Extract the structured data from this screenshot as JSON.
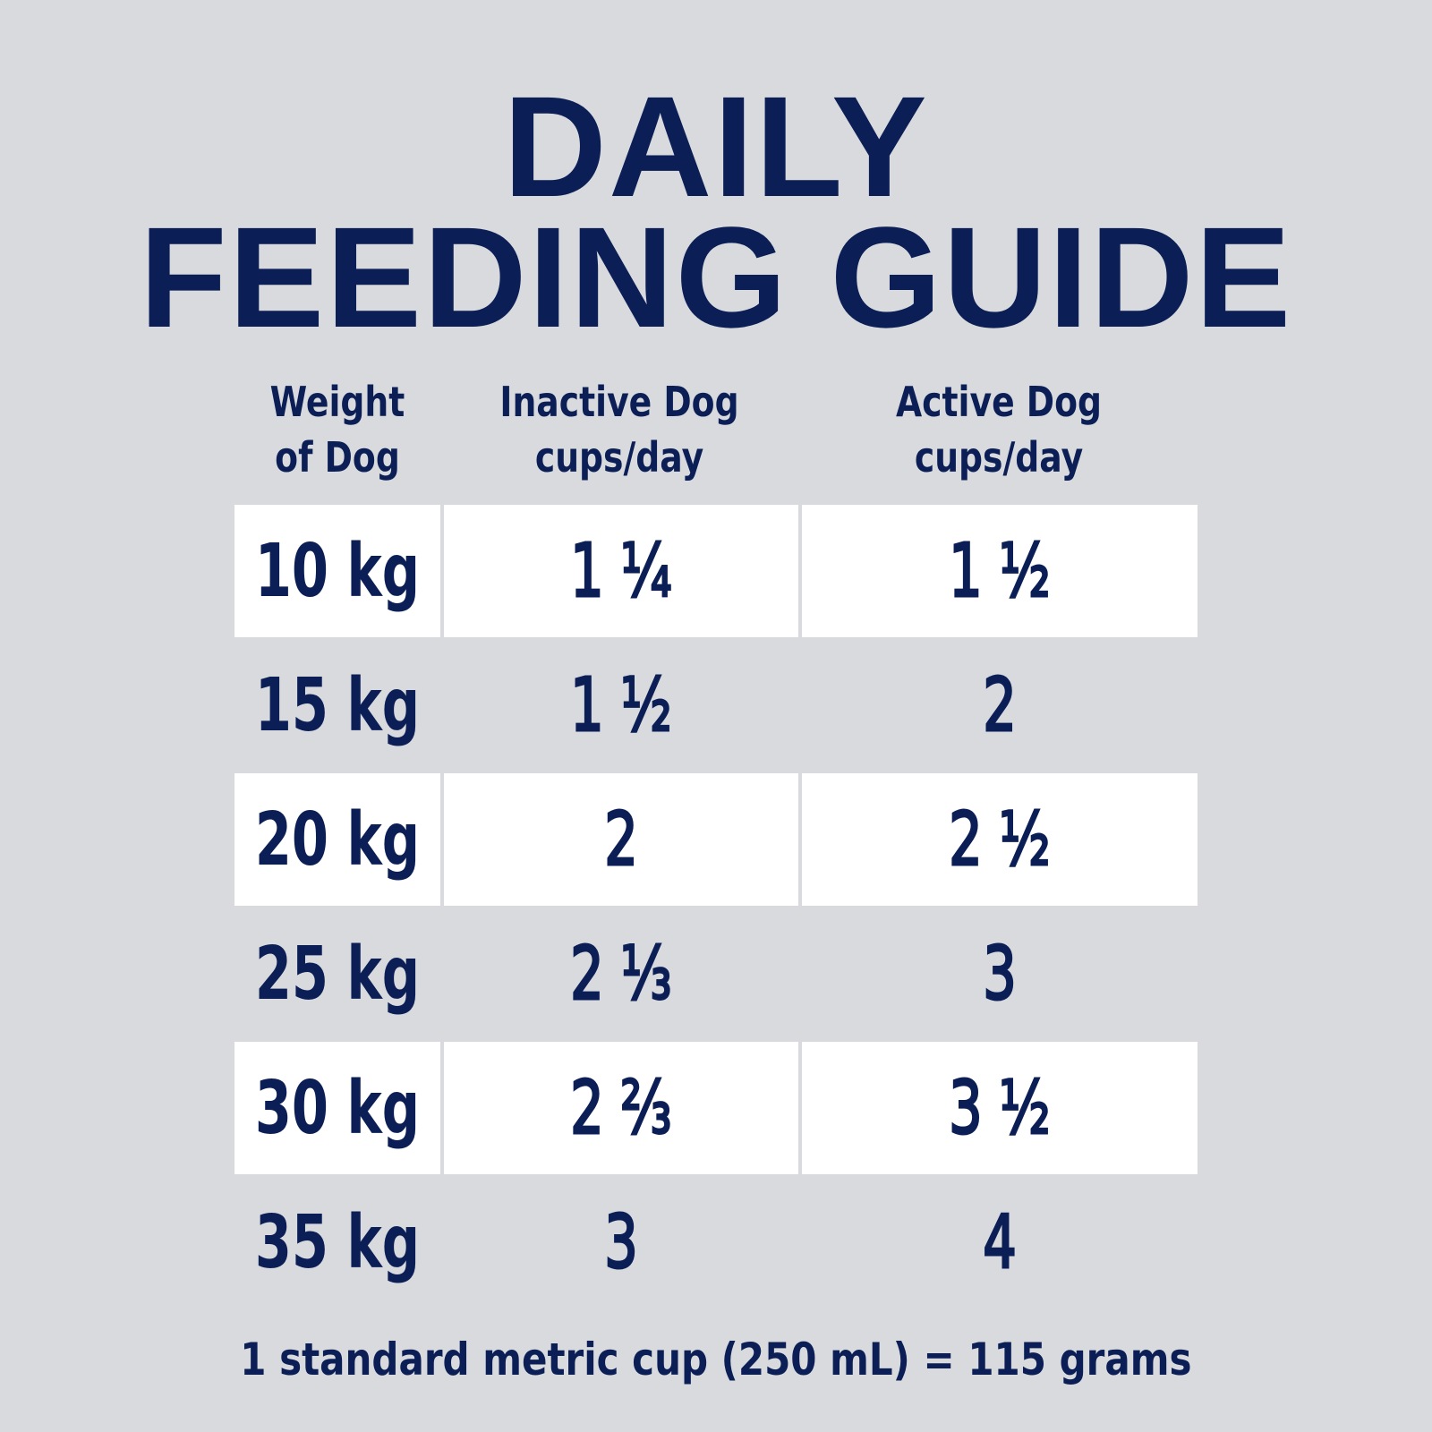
{
  "title": {
    "line1": "DAILY",
    "line2": "FEEDING GUIDE"
  },
  "headers": {
    "weight": [
      "Weight",
      "of Dog"
    ],
    "inactive": [
      "Inactive Dog",
      "cups/day"
    ],
    "active": [
      "Active Dog",
      "cups/day"
    ]
  },
  "rows": [
    {
      "weight": "10 kg",
      "inactive": "1 ¼",
      "active": "1 ½"
    },
    {
      "weight": "15 kg",
      "inactive": "1 ½",
      "active": "2"
    },
    {
      "weight": "20 kg",
      "inactive": "2",
      "active": "2 ½"
    },
    {
      "weight": "25 kg",
      "inactive": "2 ⅓",
      "active": "3"
    },
    {
      "weight": "30 kg",
      "inactive": "2 ⅔",
      "active": "3 ½"
    },
    {
      "weight": "35 kg",
      "inactive": "3",
      "active": "4"
    }
  ],
  "footnote": "1 standard metric cup (250 mL) = 115 grams",
  "colors": {
    "background": "#d8dade",
    "row_highlight": "#ffffff",
    "text": "#0b1e55"
  }
}
